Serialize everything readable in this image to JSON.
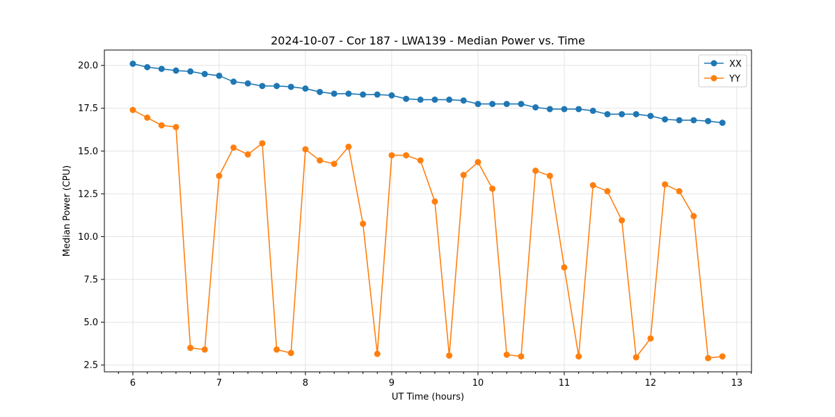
{
  "chart_data": {
    "type": "line",
    "title": "2024-10-07 - Cor 187 - LWA139 - Median Power vs. Time",
    "xlabel": "UT Time (hours)",
    "ylabel": "Median Power (CPU)",
    "xlim": [
      5.67,
      13.17
    ],
    "ylim": [
      2.1,
      20.9
    ],
    "xticks": [
      6,
      7,
      8,
      9,
      10,
      11,
      12,
      13
    ],
    "xtick_labels": [
      "6",
      "7",
      "8",
      "9",
      "10",
      "11",
      "12",
      "13"
    ],
    "yticks": [
      2.5,
      5.0,
      7.5,
      10.0,
      12.5,
      15.0,
      17.5,
      20.0
    ],
    "ytick_labels": [
      "2.5",
      "5.0",
      "7.5",
      "10.0",
      "12.5",
      "15.0",
      "17.5",
      "20.0"
    ],
    "grid": true,
    "legend_position": "top-right",
    "x": [
      6.0,
      6.167,
      6.333,
      6.5,
      6.667,
      6.833,
      7.0,
      7.167,
      7.333,
      7.5,
      7.667,
      7.833,
      8.0,
      8.167,
      8.333,
      8.5,
      8.667,
      8.833,
      9.0,
      9.167,
      9.333,
      9.5,
      9.667,
      9.833,
      10.0,
      10.167,
      10.333,
      10.5,
      10.667,
      10.833,
      11.0,
      11.167,
      11.333,
      11.5,
      11.667,
      11.833,
      12.0,
      12.167,
      12.333,
      12.5,
      12.667,
      12.833
    ],
    "series": [
      {
        "name": "XX",
        "color": "#1f77b4",
        "values": [
          20.1,
          19.9,
          19.8,
          19.7,
          19.65,
          19.5,
          19.4,
          19.05,
          18.95,
          18.8,
          18.8,
          18.75,
          18.65,
          18.45,
          18.35,
          18.35,
          18.3,
          18.3,
          18.25,
          18.05,
          18.0,
          18.0,
          18.0,
          17.95,
          17.75,
          17.75,
          17.75,
          17.75,
          17.55,
          17.45,
          17.45,
          17.45,
          17.35,
          17.15,
          17.15,
          17.15,
          17.05,
          16.85,
          16.8,
          16.8,
          16.75,
          16.65
        ]
      },
      {
        "name": "YY",
        "color": "#ff7f0e",
        "values": [
          17.4,
          16.95,
          16.5,
          16.4,
          3.5,
          3.4,
          13.55,
          15.2,
          14.8,
          15.45,
          3.4,
          3.2,
          15.1,
          14.45,
          14.25,
          15.25,
          10.75,
          3.15,
          14.75,
          14.75,
          14.45,
          12.05,
          3.05,
          13.6,
          14.35,
          12.8,
          3.1,
          3.0,
          13.85,
          13.55,
          8.2,
          3.0,
          13.0,
          12.65,
          10.95,
          2.95,
          4.05,
          13.05,
          12.65,
          11.2,
          2.9,
          3.0
        ]
      }
    ]
  }
}
